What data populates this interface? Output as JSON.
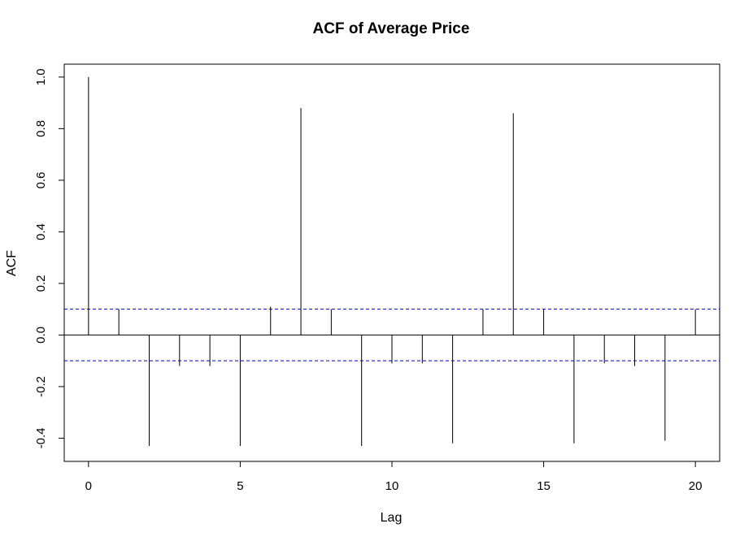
{
  "chart_data": {
    "type": "bar",
    "title": "ACF of Average Price",
    "xlabel": "Lag",
    "ylabel": "ACF",
    "x": [
      0,
      1,
      2,
      3,
      4,
      5,
      6,
      7,
      8,
      9,
      10,
      11,
      12,
      13,
      14,
      15,
      16,
      17,
      18,
      19,
      20
    ],
    "values": [
      1.0,
      0.1,
      -0.43,
      -0.12,
      -0.12,
      -0.43,
      0.11,
      0.88,
      0.1,
      -0.43,
      -0.11,
      -0.11,
      -0.42,
      0.1,
      0.86,
      0.1,
      -0.42,
      -0.11,
      -0.12,
      -0.41,
      0.1
    ],
    "xticks": [
      0,
      5,
      10,
      15,
      20
    ],
    "xtick_labels": [
      "0",
      "5",
      "10",
      "15",
      "20"
    ],
    "yticks": [
      -0.4,
      -0.2,
      0.0,
      0.2,
      0.4,
      0.6,
      0.8,
      1.0
    ],
    "ytick_labels": [
      "-0.4",
      "-0.2",
      "0.0",
      "0.2",
      "0.4",
      "0.6",
      "0.8",
      "1.0"
    ],
    "xlim": [
      -0.8,
      20.8
    ],
    "ylim": [
      -0.49,
      1.05
    ],
    "confidence_bound": 0.1,
    "grid": false,
    "colors": {
      "bars": "#000000",
      "confidence_lines": "#0000cc",
      "zero_line": "#000000"
    }
  }
}
